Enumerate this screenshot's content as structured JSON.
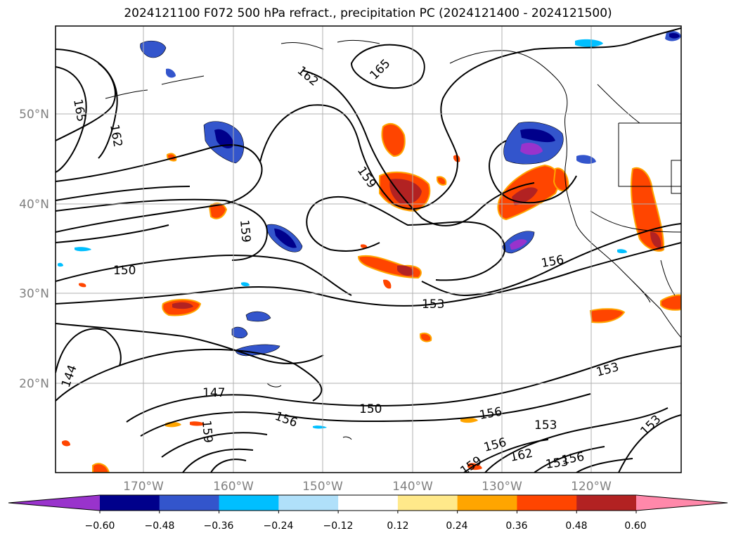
{
  "title": "2024121100 F072 500 hPa refract., precipitation PC (2024121400 - 2024121500)",
  "map": {
    "lat_labels": [
      "50°N",
      "40°N",
      "30°N",
      "20°N"
    ],
    "lon_labels": [
      "170°W",
      "160°W",
      "150°W",
      "140°W",
      "130°W",
      "120°W"
    ],
    "contour_labels": [
      "165",
      "162",
      "165",
      "162",
      "159",
      "159",
      "150",
      "156",
      "153",
      "153",
      "144",
      "147",
      "150",
      "156",
      "156",
      "153",
      "159",
      "156",
      "162",
      "159",
      "153",
      "156",
      "153"
    ]
  },
  "colorbar": {
    "ticks": [
      "−0.60",
      "−0.48",
      "−0.36",
      "−0.24",
      "−0.12",
      "0.12",
      "0.24",
      "0.36",
      "0.48",
      "0.60"
    ],
    "colors": [
      "#9933cc",
      "#00008b",
      "#3355cc",
      "#00bfff",
      "#b0e0fa",
      "#ffffff",
      "#ffe98a",
      "#ffa500",
      "#ff4500",
      "#b22222",
      "#ff88aa"
    ]
  }
}
